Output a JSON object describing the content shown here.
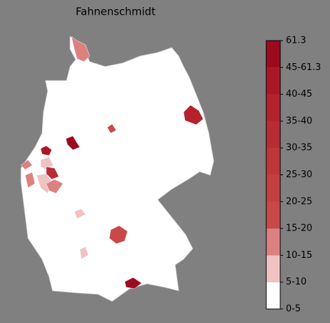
{
  "title": "Fahnenschmidt",
  "colorbar": {
    "labels": [
      "0-5",
      "5-10",
      "10-15",
      "15-20",
      "20-25",
      "25-30",
      "30-35",
      "35-40",
      "40-45",
      "45-61.3",
      61.3
    ],
    "colors": [
      "#ffffff",
      "#f0c2c2",
      "#dc8080",
      "#c94848",
      "#c4403f",
      "#bf3638",
      "#b92c33",
      "#b3222d",
      "#ab1726",
      "#9c0a1e"
    ]
  }
}
